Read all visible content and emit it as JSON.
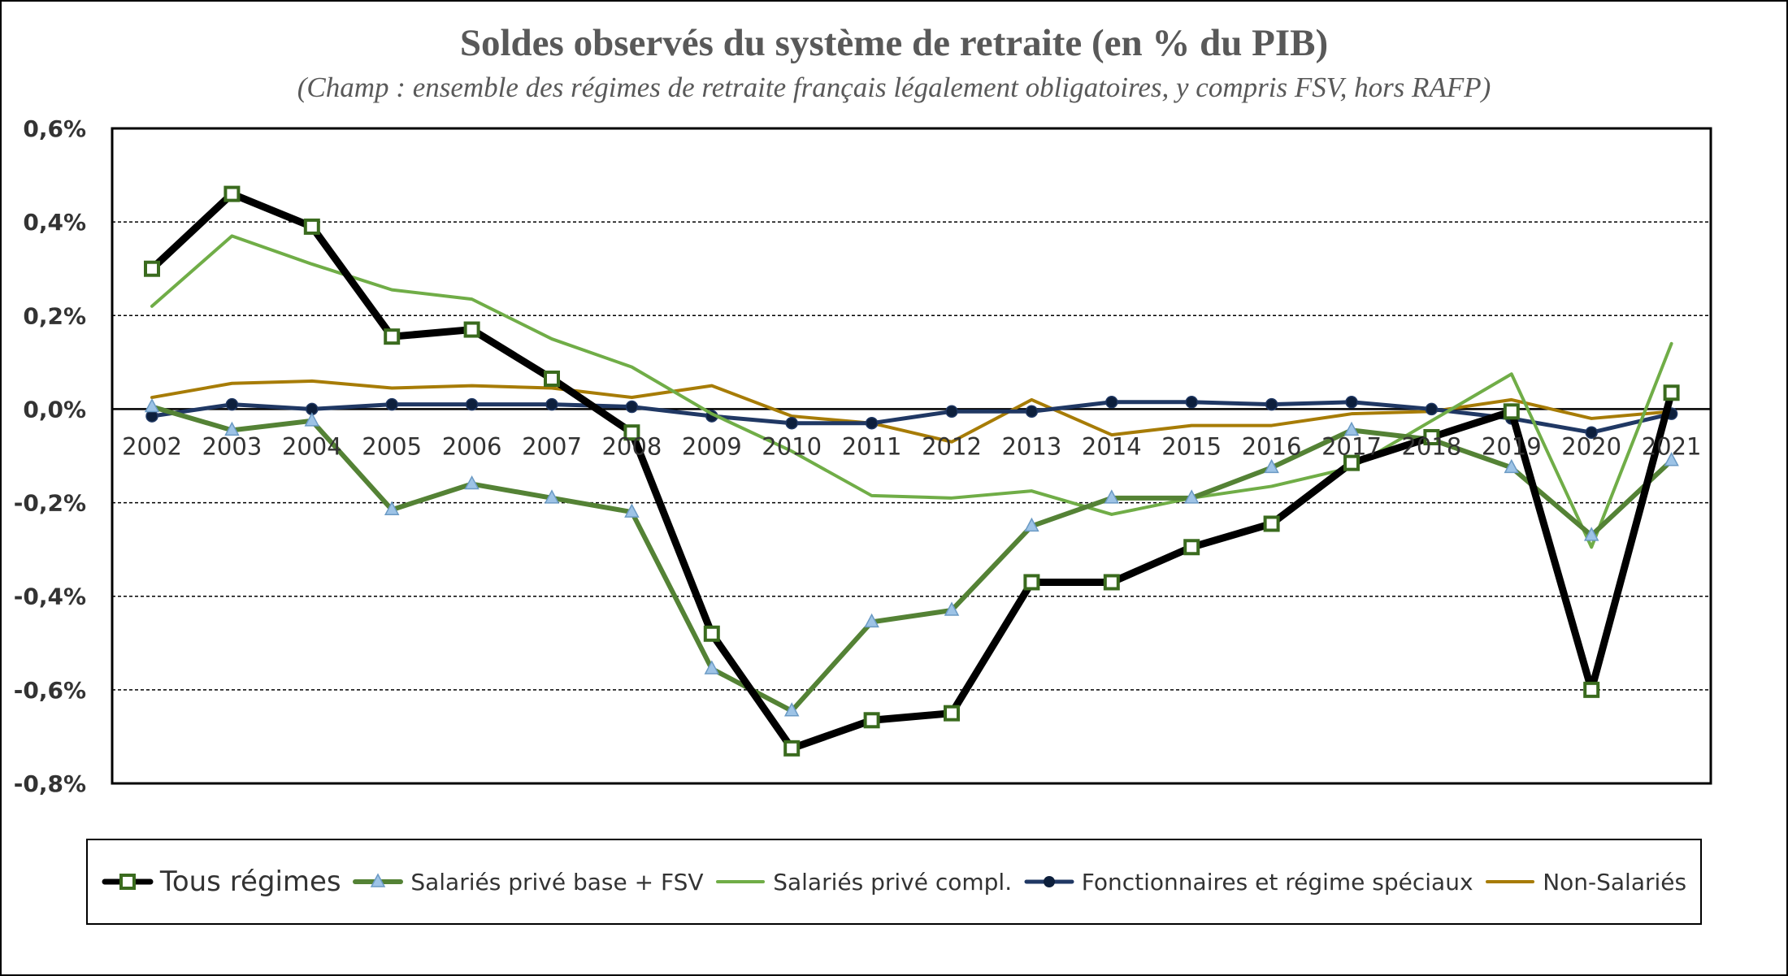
{
  "chart_data": {
    "type": "line",
    "title": "Soldes observés du système de retraite (en % du PIB)",
    "subtitle": "(Champ : ensemble des régimes de retraite français légalement obligatoires, y compris FSV, hors RAFP)",
    "categories": [
      "2002",
      "2003",
      "2004",
      "2005",
      "2006",
      "2007",
      "2008",
      "2009",
      "2010",
      "2011",
      "2012",
      "2013",
      "2014",
      "2015",
      "2016",
      "2017",
      "2018",
      "2019",
      "2020",
      "2021"
    ],
    "ylim": [
      -0.8,
      0.6
    ],
    "yticks": [
      0.6,
      0.4,
      0.2,
      0.0,
      -0.2,
      -0.4,
      -0.6,
      -0.8
    ],
    "ytick_labels": [
      "0,6%",
      "0,4%",
      "0,2%",
      "0,0%",
      "-0,2%",
      "-0,4%",
      "-0,6%",
      "-0,8%"
    ],
    "grid": true,
    "legend_position": "bottom",
    "series": [
      {
        "name": "Tous régimes",
        "color": "#000000",
        "marker": "square",
        "marker_color": "#3a6b1e",
        "values": [
          0.3,
          0.46,
          0.39,
          0.155,
          0.17,
          0.065,
          -0.05,
          -0.48,
          -0.725,
          -0.665,
          -0.65,
          -0.37,
          -0.37,
          -0.295,
          -0.245,
          -0.115,
          -0.06,
          -0.005,
          -0.6,
          0.035
        ]
      },
      {
        "name": "Salariés  privé base + FSV",
        "color": "#548235",
        "marker": "triangle",
        "marker_color": "#9dc3e6",
        "values": [
          0.005,
          -0.045,
          -0.025,
          -0.215,
          -0.16,
          -0.19,
          -0.22,
          -0.555,
          -0.645,
          -0.455,
          -0.43,
          -0.25,
          -0.19,
          -0.19,
          -0.125,
          -0.045,
          -0.065,
          -0.125,
          -0.27,
          -0.11
        ]
      },
      {
        "name": "Salariés  privé compl.",
        "color": "#70ad47",
        "marker": "none",
        "values": [
          0.22,
          0.37,
          0.31,
          0.255,
          0.235,
          0.15,
          0.09,
          -0.01,
          -0.09,
          -0.185,
          -0.19,
          -0.175,
          -0.225,
          -0.19,
          -0.165,
          -0.125,
          -0.025,
          0.075,
          -0.295,
          0.14
        ]
      },
      {
        "name": "Fonctionnaires et régime spéciaux",
        "color": "#203864",
        "marker": "circle",
        "marker_color": "#0d1f3c",
        "values": [
          -0.015,
          0.01,
          0.0,
          0.01,
          0.01,
          0.01,
          0.005,
          -0.015,
          -0.03,
          -0.03,
          -0.005,
          -0.005,
          0.015,
          0.015,
          0.01,
          0.015,
          0.0,
          -0.02,
          -0.05,
          -0.01
        ]
      },
      {
        "name": "Non-Salariés",
        "color": "#a77c06",
        "marker": "none",
        "values": [
          0.025,
          0.055,
          0.06,
          0.045,
          0.05,
          0.045,
          0.025,
          0.05,
          -0.015,
          -0.03,
          -0.07,
          0.02,
          -0.055,
          -0.035,
          -0.035,
          -0.01,
          -0.005,
          0.02,
          -0.02,
          -0.005
        ]
      }
    ]
  }
}
